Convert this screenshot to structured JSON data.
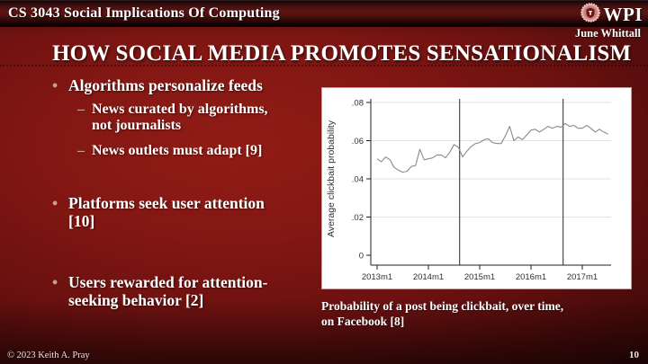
{
  "header": {
    "course_title": "CS 3043 Social Implications Of Computing",
    "logo_text": "WPI"
  },
  "author": "June Whittall",
  "slide_title": "HOW SOCIAL MEDIA PROMOTES SENSATIONALISM",
  "markers": {
    "bullet_char": "•",
    "dash_char": "–"
  },
  "bullets": [
    {
      "level": 1,
      "text": "Algorithms personalize feeds"
    },
    {
      "level": 2,
      "text": "News curated by algorithms,\nnot journalists"
    },
    {
      "level": 2,
      "text": "News outlets must adapt [9]"
    },
    {
      "level": 1,
      "text": "Platforms seek user attention\n[10]"
    },
    {
      "level": 1,
      "text": "Users rewarded for attention-\nseeking behavior [2]"
    }
  ],
  "caption": "Probability of a post being clickbait, over time,\non Facebook [8]",
  "footer": {
    "copyright": "© 2023 Keith A. Pray",
    "page_number": "10"
  },
  "colors": {
    "slide_center": "#911c16",
    "slide_edge": "#320707",
    "bullet_marker": "#c9a089",
    "chart_line": "#8a8a8a",
    "vline": "#4d4d4d",
    "gridline": "#e2e2e2",
    "axis": "#1f1f1f"
  },
  "chart_data": {
    "type": "line",
    "title": "",
    "xlabel": "",
    "ylabel": "Average clickbait probability",
    "x_start": "2013m1",
    "x_step": "1 month",
    "x_tick_labels": [
      "2013m1",
      "2014m1",
      "2015m1",
      "2016m1",
      "2017m1"
    ],
    "x_tick_months": [
      0,
      12,
      24,
      36,
      48
    ],
    "y_ticks": [
      0,
      0.02,
      0.04,
      0.06,
      0.08
    ],
    "y_tick_labels": [
      "0",
      ".02",
      ".04",
      ".06",
      ".08"
    ],
    "ylim": [
      0,
      0.085
    ],
    "grid": true,
    "legend": "none",
    "vline_month_indices": [
      19.3,
      43.5
    ],
    "series": [
      {
        "name": "Average clickbait probability on Facebook",
        "values": [
          0.0505,
          0.049,
          0.0515,
          0.05,
          0.046,
          0.0445,
          0.0435,
          0.044,
          0.0465,
          0.047,
          0.0555,
          0.05,
          0.0505,
          0.051,
          0.0525,
          0.0525,
          0.051,
          0.054,
          0.058,
          0.0565,
          0.0515,
          0.0545,
          0.057,
          0.0585,
          0.059,
          0.0605,
          0.061,
          0.059,
          0.0585,
          0.0585,
          0.0625,
          0.0675,
          0.06,
          0.062,
          0.0605,
          0.063,
          0.0655,
          0.066,
          0.0645,
          0.066,
          0.0675,
          0.0665,
          0.0675,
          0.067,
          0.069,
          0.0675,
          0.068,
          0.0665,
          0.0665,
          0.068,
          0.0665,
          0.0645,
          0.066,
          0.0645,
          0.0635
        ]
      }
    ]
  }
}
